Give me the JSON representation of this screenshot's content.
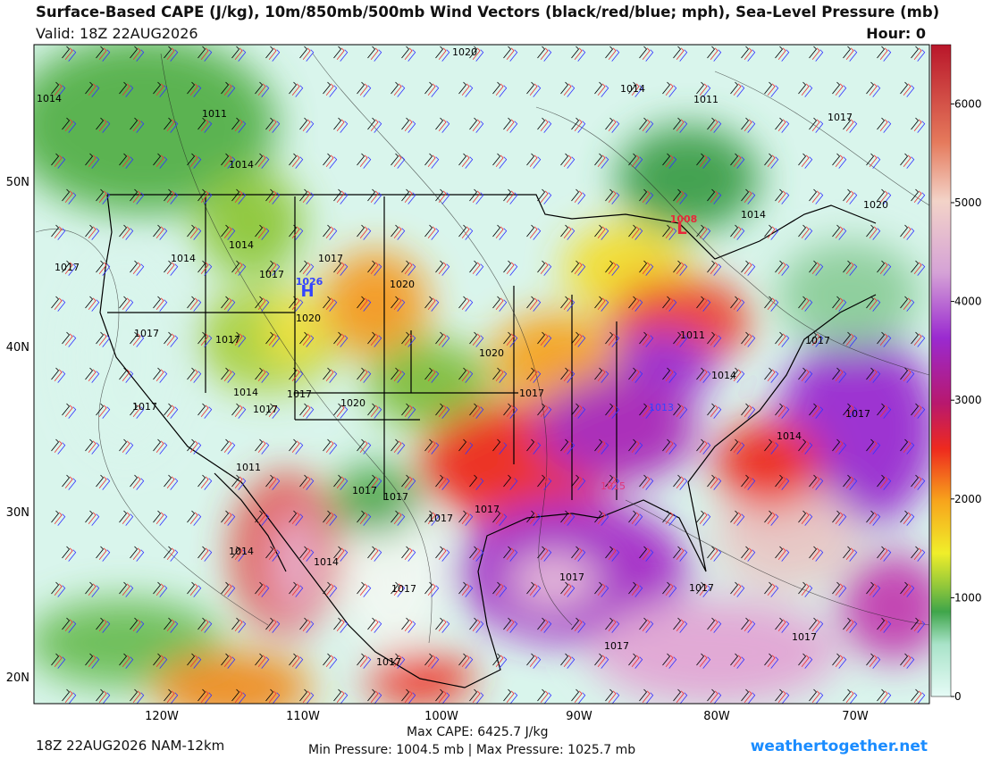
{
  "header": {
    "title": "Surface-Based CAPE (J/kg), 10m/850mb/500mb Wind Vectors (black/red/blue; mph), Sea-Level Pressure (mb)",
    "valid": "Valid: 18Z 22AUG2026",
    "hour": "Hour: 0"
  },
  "map": {
    "latitudes": [
      "50N",
      "40N",
      "30N",
      "20N"
    ],
    "longitudes": [
      "120W",
      "110W",
      "100W",
      "90W",
      "80W",
      "70W"
    ],
    "isobar_labels": [
      1020,
      1014,
      1011,
      1017,
      1014,
      1011,
      1014,
      1014,
      1020,
      1017,
      1014,
      1014,
      1017,
      1017,
      1020,
      1017,
      1017,
      1020,
      1020,
      1014,
      1017,
      1017,
      1020,
      1017,
      1014,
      1011,
      1017,
      1017,
      1017,
      1014,
      1011,
      1017,
      1017,
      1017,
      1017,
      1014,
      1014,
      1017,
      1017,
      1017,
      1017,
      1017,
      1017,
      1015,
      1013
    ],
    "centers": [
      {
        "symbol": "L",
        "pressure": 1008
      },
      {
        "symbol": "H",
        "pressure": 1026
      }
    ]
  },
  "colorbar": {
    "range": [
      0,
      6600
    ],
    "ticks": [
      0,
      1000,
      2000,
      3000,
      4000,
      5000,
      6000
    ]
  },
  "footer": {
    "run": "18Z 22AUG2026 NAM-12km",
    "max_cape": "Max CAPE: 6425.7 J/kg",
    "pressure_range": "Min Pressure: 1004.5 mb | Max Pressure: 1025.7 mb",
    "site": "weathertogether.net"
  }
}
